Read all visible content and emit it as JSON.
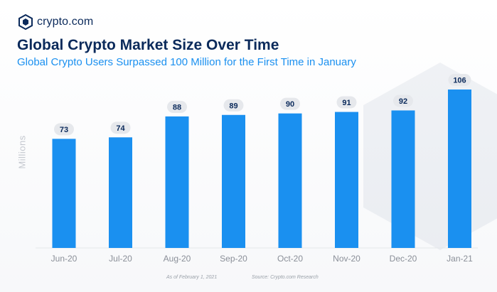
{
  "brand": {
    "name": "crypto.com",
    "logo_icon": "crypto-com-lion-shield-icon"
  },
  "title": "Global Crypto Market Size Over Time",
  "subtitle": "Global Crypto Users Surpassed 100 Million for the First Time in January",
  "footer": {
    "date_note": "As of February 1, 2021",
    "source_note": "Source: Crypto.com Research"
  },
  "colors": {
    "bar": "#1a90f0",
    "title": "#0b2a5b",
    "subtitle": "#1a90f0",
    "label_bubble": "#e6e8ec",
    "label_text": "#0b2a5b",
    "tick_text": "#8a8f98"
  },
  "chart_data": {
    "type": "bar",
    "categories": [
      "Jun-20",
      "Jul-20",
      "Aug-20",
      "Sep-20",
      "Oct-20",
      "Nov-20",
      "Dec-20",
      "Jan-21"
    ],
    "values": [
      73,
      74,
      88,
      89,
      90,
      91,
      92,
      106
    ],
    "data_labels": [
      "73",
      "74",
      "88",
      "89",
      "90",
      "91",
      "92",
      "106"
    ],
    "ylabel": "Millions",
    "xlabel": "",
    "ylim": [
      0,
      110
    ],
    "grid": false,
    "legend": "none"
  }
}
